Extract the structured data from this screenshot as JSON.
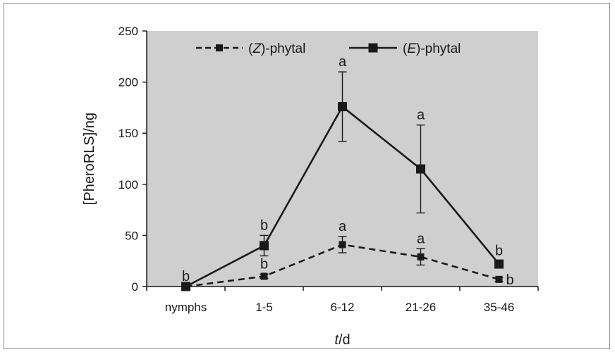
{
  "chart_data": {
    "type": "line",
    "title": "",
    "xlabel": {
      "italic": "t",
      "rest": "/d"
    },
    "ylabel": "[PheroRLS]/ng",
    "ylim": [
      0,
      250
    ],
    "yticks": [
      0,
      50,
      100,
      150,
      200,
      250
    ],
    "categories": [
      "nymphs",
      "1-5",
      "6-12",
      "21-26",
      "35-46"
    ],
    "grid": false,
    "legend_position": "top",
    "background_color": "#cfcfcf",
    "series": [
      {
        "name": "(Z)-phytal",
        "legend_italic": "Z",
        "legend_prefix": "(",
        "legend_suffix": ")-phytal",
        "style": "dashed",
        "color": "#1a1a1a",
        "values": [
          0,
          10,
          41,
          29,
          7
        ],
        "error": [
          0,
          2,
          8,
          8,
          2
        ],
        "sig": [
          "b",
          "b",
          "a",
          "a",
          "b"
        ],
        "sig_pos": [
          "above",
          "above",
          "above",
          "above",
          "right"
        ]
      },
      {
        "name": "(E)-phytal",
        "legend_italic": "E",
        "legend_prefix": "(",
        "legend_suffix": ")-phytal",
        "style": "solid",
        "color": "#1a1a1a",
        "values": [
          0,
          40,
          176,
          115,
          22
        ],
        "error": [
          0,
          10,
          34,
          43,
          3
        ],
        "sig": [
          "",
          "b",
          "a",
          "a",
          "b"
        ],
        "sig_pos": [
          "above",
          "above",
          "above",
          "above",
          "above"
        ]
      }
    ]
  }
}
